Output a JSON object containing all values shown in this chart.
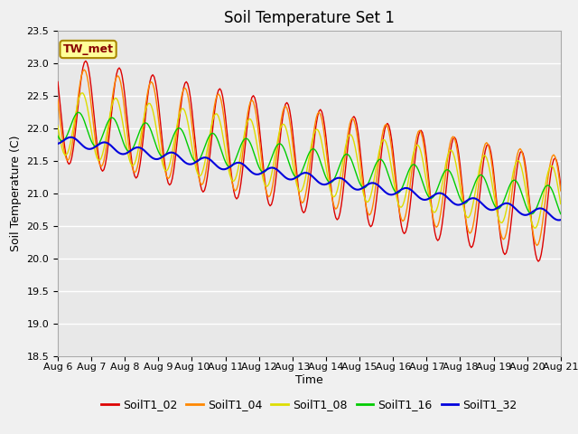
{
  "title": "Soil Temperature Set 1",
  "xlabel": "Time",
  "ylabel": "Soil Temperature (C)",
  "ylim": [
    18.5,
    23.5
  ],
  "annotation": "TW_met",
  "series_labels": [
    "SoilT1_02",
    "SoilT1_04",
    "SoilT1_08",
    "SoilT1_16",
    "SoilT1_32"
  ],
  "series_colors": [
    "#dd0000",
    "#ff8800",
    "#dddd00",
    "#00cc00",
    "#0000dd"
  ],
  "x_tick_labels": [
    "Aug 6",
    "Aug 7",
    "Aug 8",
    "Aug 9",
    "Aug 10",
    "Aug 11",
    "Aug 12",
    "Aug 13",
    "Aug 14",
    "Aug 15",
    "Aug 16",
    "Aug 17",
    "Aug 18",
    "Aug 19",
    "Aug 20",
    "Aug 21"
  ],
  "plot_bg_color": "#e8e8e8",
  "fig_bg_color": "#f0f0f0",
  "grid_color": "#ffffff",
  "title_fontsize": 12,
  "axis_fontsize": 9,
  "tick_fontsize": 8,
  "legend_fontsize": 9
}
